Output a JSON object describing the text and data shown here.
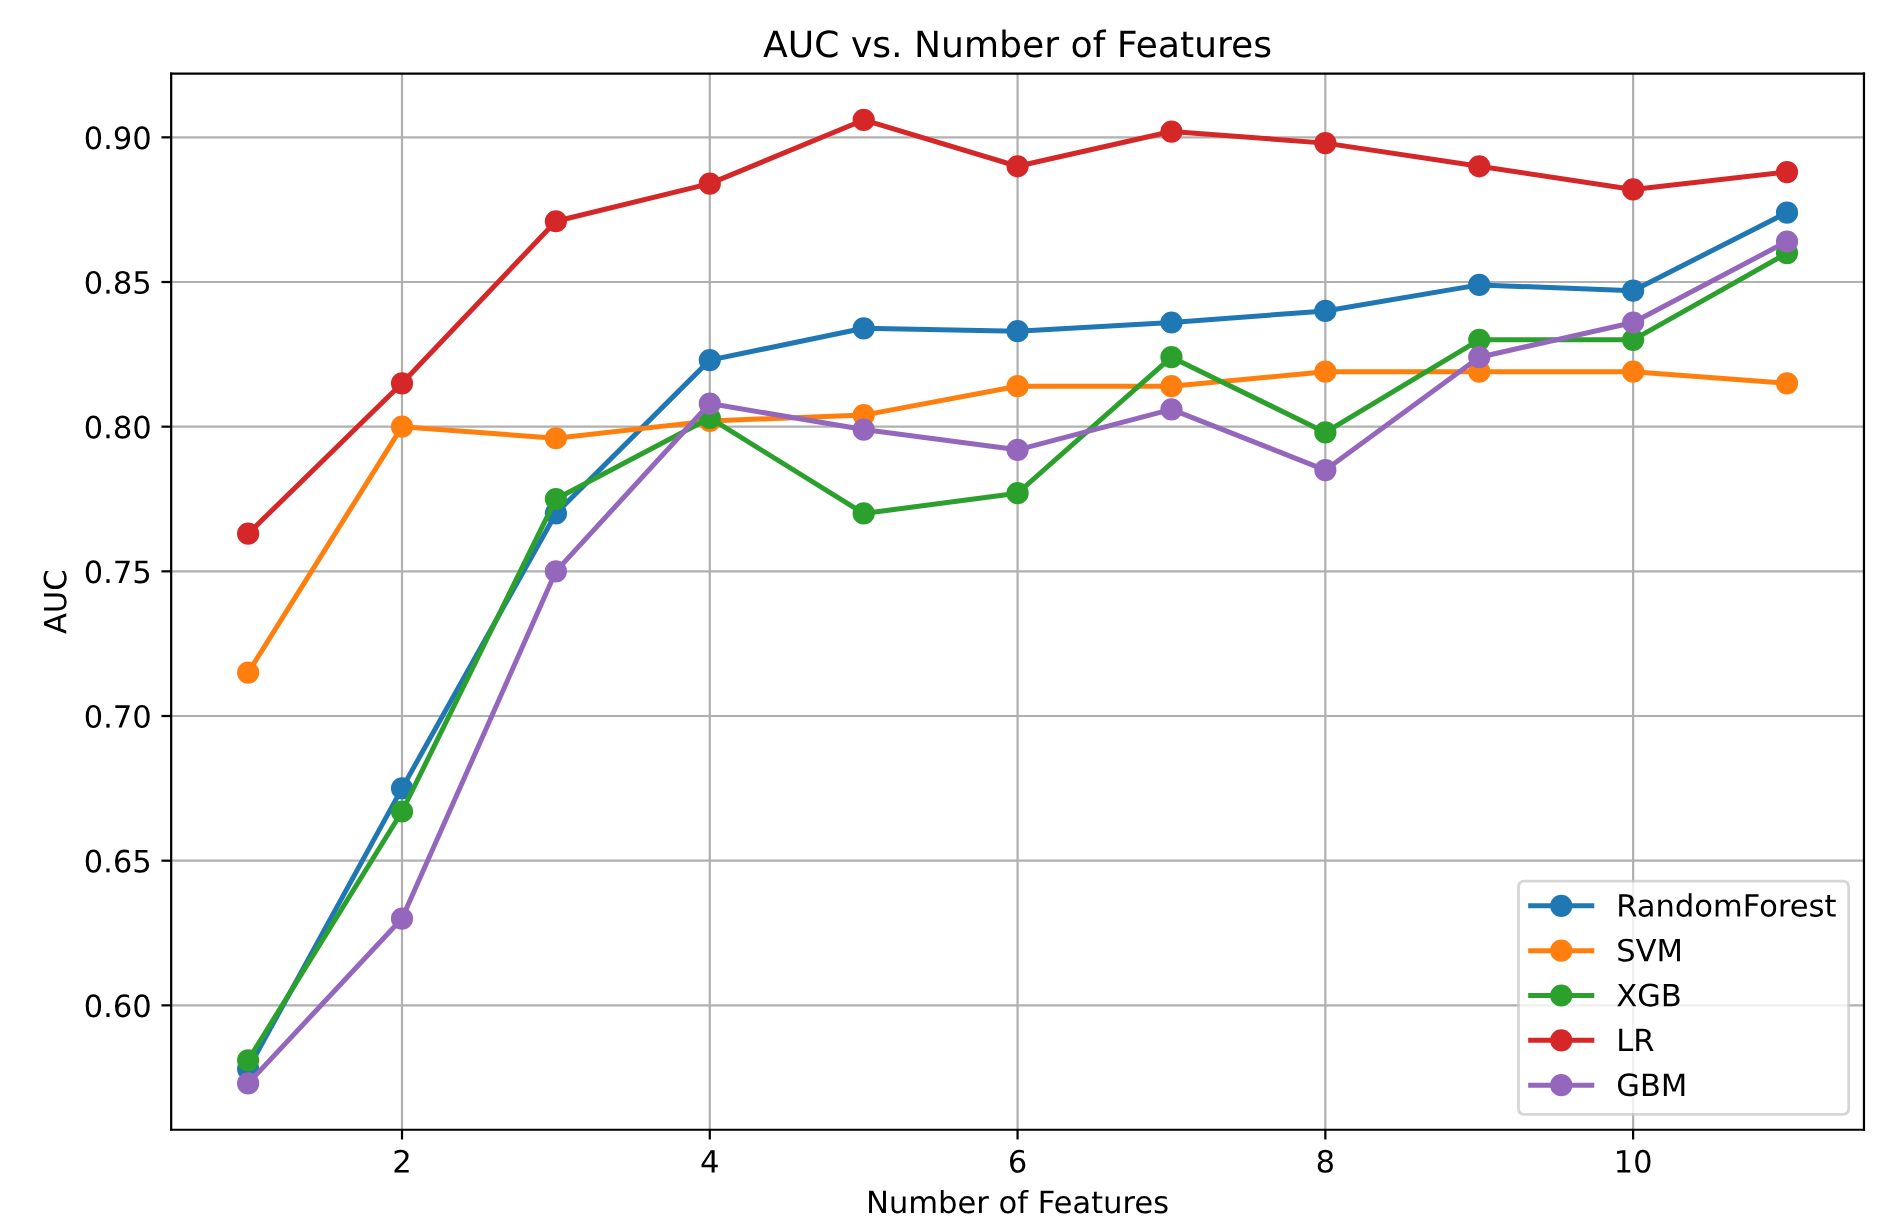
{
  "chart_data": {
    "type": "line",
    "title": "AUC vs. Number of Features",
    "xlabel": "Number of Features",
    "ylabel": "AUC",
    "x": [
      1,
      2,
      3,
      4,
      5,
      6,
      7,
      8,
      9,
      10,
      11
    ],
    "series": [
      {
        "name": "RandomForest",
        "color": "#1f77b4",
        "values": [
          0.578,
          0.675,
          0.77,
          0.823,
          0.834,
          0.833,
          0.836,
          0.84,
          0.849,
          0.847,
          0.874
        ]
      },
      {
        "name": "SVM",
        "color": "#ff7f0e",
        "values": [
          0.715,
          0.8,
          0.796,
          0.802,
          0.804,
          0.814,
          0.814,
          0.819,
          0.819,
          0.819,
          0.815
        ]
      },
      {
        "name": "XGB",
        "color": "#2ca02c",
        "values": [
          0.581,
          0.667,
          0.775,
          0.803,
          0.77,
          0.777,
          0.824,
          0.798,
          0.83,
          0.83,
          0.86
        ]
      },
      {
        "name": "LR",
        "color": "#d62728",
        "values": [
          0.763,
          0.815,
          0.871,
          0.884,
          0.906,
          0.89,
          0.902,
          0.898,
          0.89,
          0.882,
          0.888
        ]
      },
      {
        "name": "GBM",
        "color": "#9467bd",
        "values": [
          0.573,
          0.63,
          0.75,
          0.808,
          0.799,
          0.792,
          0.806,
          0.785,
          0.824,
          0.836,
          0.864
        ]
      }
    ],
    "xlim": [
      0.5,
      11.5
    ],
    "ylim": [
      0.557,
      0.922
    ],
    "xticks": [
      2,
      4,
      6,
      8,
      10
    ],
    "yticks": [
      {
        "value": 0.6,
        "label": "0.60"
      },
      {
        "value": 0.65,
        "label": "0.65"
      },
      {
        "value": 0.7,
        "label": "0.70"
      },
      {
        "value": 0.75,
        "label": "0.75"
      },
      {
        "value": 0.8,
        "label": "0.80"
      },
      {
        "value": 0.85,
        "label": "0.85"
      },
      {
        "value": 0.9,
        "label": "0.90"
      }
    ],
    "grid": true,
    "legend": "lower right",
    "marker": "circle",
    "line_style": "solid"
  }
}
